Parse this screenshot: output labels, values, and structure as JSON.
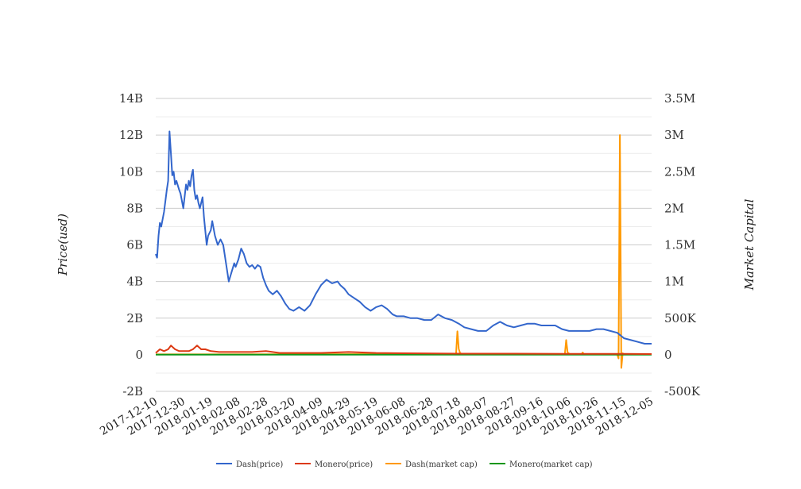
{
  "chart_data": {
    "type": "line",
    "title": "",
    "ylabel_left": "Price(usd)",
    "ylabel_right": "Market Capital",
    "y_left_ticks": [
      "-2B",
      "0",
      "2B",
      "4B",
      "6B",
      "8B",
      "10B",
      "12B",
      "14B"
    ],
    "y_right_ticks": [
      "-500K",
      "0",
      "500K",
      "1M",
      "1.5M",
      "2M",
      "2.5M",
      "3M",
      "3.5M"
    ],
    "y_left_range": [
      -2000000000,
      14000000000
    ],
    "y_right_range": [
      -500000,
      3500000
    ],
    "x_range": [
      "2017-12-10",
      "2018-12-05"
    ],
    "x_ticks": [
      "2017-12-10",
      "2017-12-30",
      "2018-01-19",
      "2018-02-08",
      "2018-02-28",
      "2018-03-20",
      "2018-04-09",
      "2018-04-29",
      "2018-05-19",
      "2018-06-08",
      "2018-06-28",
      "2018-07-18",
      "2018-08-07",
      "2018-08-27",
      "2018-09-16",
      "2018-10-06",
      "2018-10-26",
      "2018-11-15",
      "2018-12-05"
    ],
    "grid": true,
    "legend_position": "bottom",
    "series": [
      {
        "name": "Dash(price)",
        "color": "#3366cc",
        "axis": "left",
        "x": [
          "2017-12-10",
          "2017-12-11",
          "2017-12-12",
          "2017-12-13",
          "2017-12-14",
          "2017-12-16",
          "2017-12-18",
          "2017-12-19",
          "2017-12-20",
          "2017-12-21",
          "2017-12-22",
          "2017-12-23",
          "2017-12-24",
          "2017-12-25",
          "2017-12-27",
          "2017-12-28",
          "2017-12-30",
          "2018-01-01",
          "2018-01-02",
          "2018-01-03",
          "2018-01-04",
          "2018-01-05",
          "2018-01-06",
          "2018-01-07",
          "2018-01-08",
          "2018-01-09",
          "2018-01-10",
          "2018-01-11",
          "2018-01-13",
          "2018-01-14",
          "2018-01-16",
          "2018-01-17",
          "2018-01-19",
          "2018-01-20",
          "2018-01-22",
          "2018-01-24",
          "2018-01-26",
          "2018-01-28",
          "2018-01-30",
          "2018-02-01",
          "2018-02-03",
          "2018-02-05",
          "2018-02-06",
          "2018-02-08",
          "2018-02-10",
          "2018-02-12",
          "2018-02-14",
          "2018-02-16",
          "2018-02-18",
          "2018-02-20",
          "2018-02-22",
          "2018-02-24",
          "2018-02-26",
          "2018-02-28",
          "2018-03-02",
          "2018-03-05",
          "2018-03-08",
          "2018-03-11",
          "2018-03-14",
          "2018-03-17",
          "2018-03-20",
          "2018-03-24",
          "2018-03-28",
          "2018-04-01",
          "2018-04-05",
          "2018-04-09",
          "2018-04-13",
          "2018-04-17",
          "2018-04-21",
          "2018-04-23",
          "2018-04-26",
          "2018-04-29",
          "2018-05-03",
          "2018-05-07",
          "2018-05-11",
          "2018-05-15",
          "2018-05-19",
          "2018-05-23",
          "2018-05-27",
          "2018-05-31",
          "2018-06-03",
          "2018-06-08",
          "2018-06-13",
          "2018-06-18",
          "2018-06-23",
          "2018-06-28",
          "2018-07-03",
          "2018-07-08",
          "2018-07-13",
          "2018-07-18",
          "2018-07-22",
          "2018-07-27",
          "2018-08-01",
          "2018-08-07",
          "2018-08-12",
          "2018-08-17",
          "2018-08-22",
          "2018-08-27",
          "2018-09-01",
          "2018-09-06",
          "2018-09-11",
          "2018-09-16",
          "2018-09-21",
          "2018-09-26",
          "2018-10-01",
          "2018-10-06",
          "2018-10-11",
          "2018-10-16",
          "2018-10-21",
          "2018-10-26",
          "2018-10-31",
          "2018-11-05",
          "2018-11-10",
          "2018-11-15",
          "2018-11-20",
          "2018-11-25",
          "2018-11-30",
          "2018-12-05"
        ],
        "values": [
          5500000000.0,
          5300000000.0,
          6500000000.0,
          7200000000.0,
          7000000000.0,
          7800000000.0,
          9000000000.0,
          9500000000.0,
          12200000000.0,
          11000000000.0,
          9800000000.0,
          10000000000.0,
          9300000000.0,
          9500000000.0,
          9000000000.0,
          8800000000.0,
          8000000000.0,
          9300000000.0,
          9000000000.0,
          9500000000.0,
          9200000000.0,
          9800000000.0,
          10100000000.0,
          9000000000.0,
          8500000000.0,
          8700000000.0,
          8300000000.0,
          8000000000.0,
          8600000000.0,
          7500000000.0,
          6000000000.0,
          6500000000.0,
          6800000000.0,
          7300000000.0,
          6500000000.0,
          6000000000.0,
          6300000000.0,
          6000000000.0,
          5000000000.0,
          4000000000.0,
          4500000000.0,
          5000000000.0,
          4800000000.0,
          5200000000.0,
          5800000000.0,
          5500000000.0,
          5000000000.0,
          4800000000.0,
          4900000000.0,
          4700000000.0,
          4900000000.0,
          4800000000.0,
          4200000000.0,
          3800000000.0,
          3500000000.0,
          3300000000.0,
          3500000000.0,
          3200000000.0,
          2800000000.0,
          2500000000.0,
          2400000000.0,
          2600000000.0,
          2400000000.0,
          2700000000.0,
          3300000000.0,
          3800000000.0,
          4100000000.0,
          3900000000.0,
          4000000000.0,
          3800000000.0,
          3600000000.0,
          3300000000.0,
          3100000000.0,
          2900000000.0,
          2600000000.0,
          2400000000.0,
          2600000000.0,
          2700000000.0,
          2500000000.0,
          2200000000.0,
          2100000000.0,
          2100000000.0,
          2000000000.0,
          2000000000.0,
          1900000000.0,
          1900000000.0,
          2200000000.0,
          2000000000.0,
          1900000000.0,
          1700000000.0,
          1500000000.0,
          1400000000.0,
          1300000000.0,
          1300000000.0,
          1600000000.0,
          1800000000.0,
          1600000000.0,
          1500000000.0,
          1600000000.0,
          1700000000.0,
          1700000000.0,
          1600000000.0,
          1600000000.0,
          1600000000.0,
          1400000000.0,
          1300000000.0,
          1300000000.0,
          1300000000.0,
          1300000000.0,
          1400000000.0,
          1400000000.0,
          1300000000.0,
          1200000000.0,
          900000000.0,
          800000000.0,
          700000000.0,
          600000000.0,
          600000000.0
        ]
      },
      {
        "name": "Monero(price)",
        "color": "#dc3912",
        "axis": "left",
        "x": [
          "2017-12-10",
          "2017-12-13",
          "2017-12-16",
          "2017-12-19",
          "2017-12-21",
          "2017-12-24",
          "2017-12-27",
          "2017-12-30",
          "2018-01-03",
          "2018-01-06",
          "2018-01-09",
          "2018-01-12",
          "2018-01-15",
          "2018-01-19",
          "2018-01-25",
          "2018-02-01",
          "2018-02-08",
          "2018-02-18",
          "2018-02-28",
          "2018-03-10",
          "2018-03-20",
          "2018-04-09",
          "2018-04-29",
          "2018-05-19",
          "2018-06-08",
          "2018-07-18",
          "2018-08-27",
          "2018-10-06",
          "2018-11-15",
          "2018-12-05"
        ],
        "values": [
          100000000.0,
          300000000.0,
          200000000.0,
          300000000.0,
          500000000.0,
          300000000.0,
          200000000.0,
          200000000.0,
          200000000.0,
          300000000.0,
          500000000.0,
          300000000.0,
          300000000.0,
          200000000.0,
          150000000.0,
          150000000.0,
          150000000.0,
          150000000.0,
          200000000.0,
          100000000.0,
          100000000.0,
          100000000.0,
          150000000.0,
          100000000.0,
          80000000.0,
          60000000.0,
          60000000.0,
          50000000.0,
          50000000.0,
          40000000.0
        ]
      },
      {
        "name": "Dash(market cap)",
        "color": "#ff9900",
        "axis": "right",
        "x": [
          "2017-12-10",
          "2018-07-10",
          "2018-07-16",
          "2018-07-17",
          "2018-07-18",
          "2018-07-19",
          "2018-07-21",
          "2018-07-25",
          "2018-09-30",
          "2018-10-03",
          "2018-10-04",
          "2018-10-05",
          "2018-10-07",
          "2018-10-15",
          "2018-10-16",
          "2018-10-17",
          "2018-11-10",
          "2018-11-11",
          "2018-11-12",
          "2018-11-13",
          "2018-11-14",
          "2018-11-15",
          "2018-12-05"
        ],
        "values": [
          5000,
          10000,
          10000,
          320000,
          80000,
          20000,
          10000,
          5000,
          5000,
          5000,
          200000,
          30000,
          5000,
          5000,
          30000,
          5000,
          5000,
          -50000,
          3000000,
          -180000,
          20000,
          5000,
          5000
        ]
      },
      {
        "name": "Monero(market cap)",
        "color": "#109618",
        "axis": "right",
        "x": [
          "2017-12-10",
          "2018-12-05"
        ],
        "values": [
          1000,
          1000
        ]
      }
    ]
  }
}
